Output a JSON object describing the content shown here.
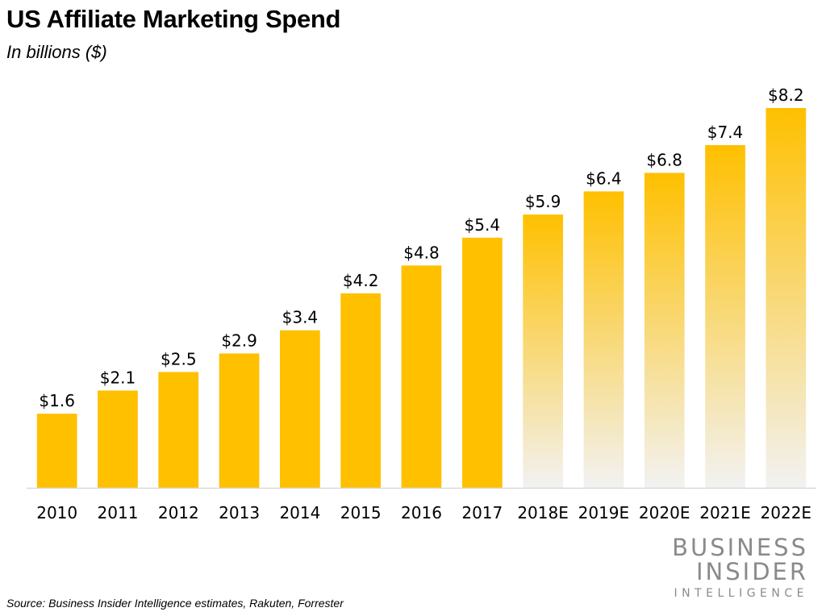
{
  "title": "US Affiliate Marketing Spend",
  "subtitle": "In billions ($)",
  "source": "Source: Business Insider Intelligence estimates, Rakuten, Forrester",
  "logo": {
    "line1": "BUSINESS",
    "line2": "INSIDER",
    "line3": "INTELLIGENCE"
  },
  "colors": {
    "bar": "#FFC000",
    "forecast_fade": "#F2F2F2",
    "axis": "#D9D9D9",
    "logo": "#8A8A8A"
  },
  "chart_data": {
    "type": "bar",
    "title": "US Affiliate Marketing Spend",
    "subtitle": "In billions ($)",
    "xlabel": "",
    "ylabel": "",
    "ylim": [
      0,
      8.2
    ],
    "grid": false,
    "categories": [
      "2010",
      "2011",
      "2012",
      "2013",
      "2014",
      "2015",
      "2016",
      "2017",
      "2018E",
      "2019E",
      "2020E",
      "2021E",
      "2022E"
    ],
    "values": [
      1.6,
      2.1,
      2.5,
      2.9,
      3.4,
      4.2,
      4.8,
      5.4,
      5.9,
      6.4,
      6.8,
      7.4,
      8.2
    ],
    "value_labels": [
      "$1.6",
      "$2.1",
      "$2.5",
      "$2.9",
      "$3.4",
      "$4.2",
      "$4.8",
      "$5.4",
      "$5.9",
      "$6.4",
      "$6.8",
      "$7.4",
      "$8.2"
    ],
    "forecast": [
      false,
      false,
      false,
      false,
      false,
      false,
      false,
      false,
      true,
      true,
      true,
      true,
      true
    ]
  }
}
